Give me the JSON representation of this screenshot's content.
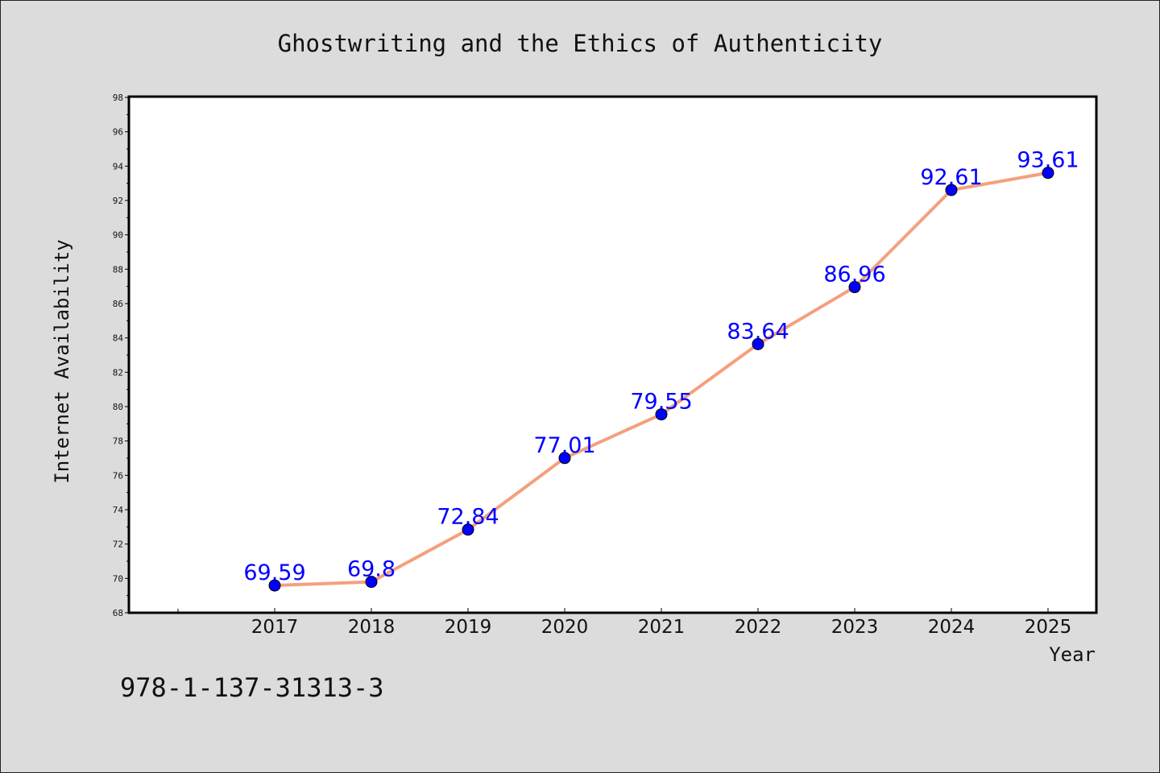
{
  "chart_data": {
    "type": "line",
    "title": "Ghostwriting and the Ethics of Authenticity",
    "xlabel": "Year",
    "ylabel": "Internet Availability",
    "categories": [
      "2017",
      "2018",
      "2019",
      "2020",
      "2021",
      "2022",
      "2023",
      "2024",
      "2025"
    ],
    "series": [
      {
        "values": [
          69.59,
          69.8,
          72.84,
          77.01,
          79.55,
          83.64,
          86.96,
          92.61,
          93.61
        ],
        "data_labels": [
          "69.59",
          "69.8",
          "72.84",
          "77.01",
          "79.55",
          "83.64",
          "86.96",
          "92.61",
          "93.61"
        ]
      }
    ],
    "ylim": [
      68,
      98
    ],
    "yticks": [
      "68",
      "70",
      "72",
      "74",
      "76",
      "78",
      "80",
      "82",
      "84",
      "86",
      "88",
      "90",
      "92",
      "94",
      "96",
      "98"
    ],
    "grid": false,
    "legend": "none",
    "colors": {
      "line": "#f4a07e",
      "marker": "#0000ff",
      "label": "#0000ff",
      "background": "#dcdcdc",
      "plot_background": "#ffffff"
    }
  },
  "footer": {
    "isbn": "978-1-137-31313-3"
  }
}
